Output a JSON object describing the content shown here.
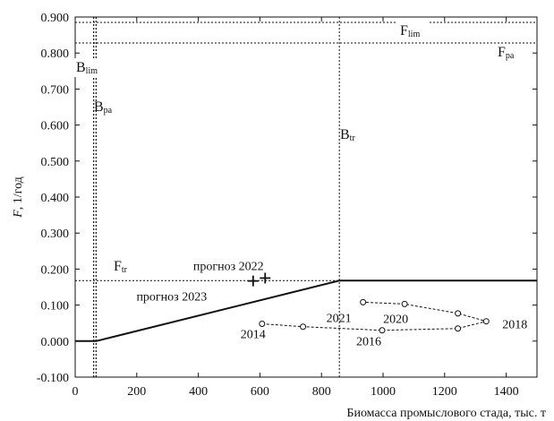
{
  "chart_data": {
    "type": "line",
    "xlabel": "Биомасса промыслового стада, тыс. т",
    "ylabel_main": "F",
    "ylabel_unit": ", 1/год",
    "xlim": [
      0,
      1500
    ],
    "ylim": [
      -0.1,
      0.9
    ],
    "xticks": [
      0,
      200,
      400,
      600,
      800,
      1000,
      1200,
      1400
    ],
    "yticks": [
      -0.1,
      0.0,
      0.1,
      0.2,
      0.3,
      0.4,
      0.5,
      0.6,
      0.7,
      0.8,
      0.9
    ],
    "ytick_labels": [
      "-0.100",
      "0.000",
      "0.100",
      "0.200",
      "0.300",
      "0.400",
      "0.500",
      "0.600",
      "0.700",
      "0.800",
      "0.900"
    ],
    "reference_lines": {
      "F_lim": {
        "axis": "y",
        "value": 0.885,
        "main": "F",
        "sub": "lim"
      },
      "F_pa": {
        "axis": "y",
        "value": 0.828,
        "main": "F",
        "sub": "pa"
      },
      "F_tr": {
        "axis": "y",
        "value": 0.168,
        "main": "F",
        "sub": "tr"
      },
      "B_lim": {
        "axis": "x",
        "value": 60,
        "main": "B",
        "sub": "lim"
      },
      "B_pa": {
        "axis": "x",
        "value": 68,
        "main": "B",
        "sub": "pa"
      },
      "B_tr": {
        "axis": "x",
        "value": 858,
        "main": "B",
        "sub": "tr"
      }
    },
    "control_rule": {
      "x": [
        0,
        68,
        858,
        1500
      ],
      "y": [
        0.0,
        0.0,
        0.168,
        0.168
      ]
    },
    "history": {
      "x": [
        607,
        740,
        997,
        1243,
        1335,
        1243,
        1070,
        935
      ],
      "y": [
        0.048,
        0.04,
        0.03,
        0.035,
        0.055,
        0.077,
        0.103,
        0.108
      ],
      "labels": [
        {
          "index": 0,
          "text": "2014"
        },
        {
          "index": 2,
          "text": "2016"
        },
        {
          "index": 4,
          "text": "2018"
        },
        {
          "index": 6,
          "text": "2020"
        },
        {
          "index": 7,
          "text": "2021"
        }
      ]
    },
    "forecasts": [
      {
        "label": "прогноз 2022",
        "x": 617,
        "y": 0.175
      },
      {
        "label": "прогноз 2023",
        "x": 578,
        "y": 0.167
      }
    ]
  }
}
